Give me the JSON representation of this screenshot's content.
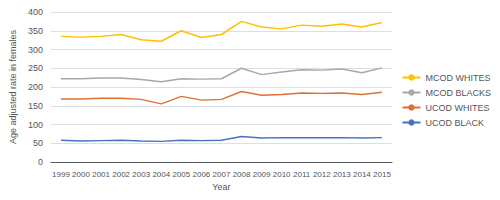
{
  "chart_data": {
    "type": "line",
    "xlabel": "Year",
    "ylabel": "Age adjusted rate in females",
    "categories": [
      "1999",
      "2000",
      "2001",
      "2002",
      "2003",
      "2004",
      "2005",
      "2006",
      "2007",
      "2008",
      "2009",
      "2010",
      "2011",
      "2012",
      "2013",
      "2014",
      "2015"
    ],
    "series": [
      {
        "name": "MCOD WHITES",
        "color": "#FFC000",
        "values": [
          335,
          333,
          335,
          340,
          326,
          322,
          350,
          332,
          340,
          375,
          360,
          355,
          365,
          362,
          368,
          360,
          372
        ]
      },
      {
        "name": "MCOD BLACKS",
        "color": "#A8A8A8",
        "values": [
          222,
          222,
          224,
          224,
          220,
          214,
          222,
          221,
          222,
          250,
          233,
          240,
          246,
          245,
          248,
          238,
          251
        ]
      },
      {
        "name": "UCOD WHITES",
        "color": "#E07030",
        "values": [
          168,
          168,
          170,
          170,
          167,
          155,
          175,
          165,
          167,
          188,
          178,
          180,
          184,
          183,
          184,
          180,
          186
        ]
      },
      {
        "name": "UCOD BLACK",
        "color": "#4472C4",
        "values": [
          58,
          56,
          57,
          58,
          56,
          55,
          58,
          57,
          58,
          68,
          64,
          65,
          65,
          65,
          65,
          64,
          65
        ]
      }
    ],
    "ylim": [
      0,
      400
    ],
    "yticks": [
      0,
      50,
      100,
      150,
      200,
      250,
      300,
      350,
      400
    ],
    "grid": true,
    "legend": "right"
  }
}
